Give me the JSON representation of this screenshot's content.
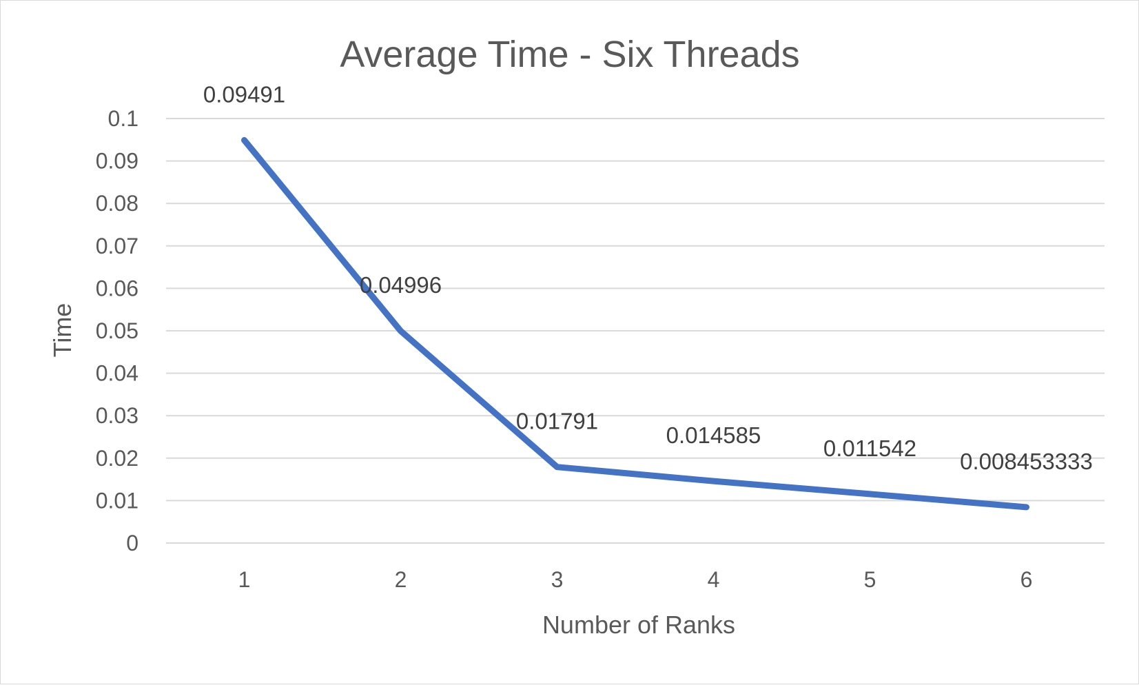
{
  "chart_data": {
    "type": "line",
    "title": "Average Time - Six Threads",
    "xlabel": "Number of Ranks",
    "ylabel": "Time",
    "categories": [
      "1",
      "2",
      "3",
      "4",
      "5",
      "6"
    ],
    "series": [
      {
        "values": [
          0.09491,
          0.04996,
          0.01791,
          0.014585,
          0.011542,
          0.008453333
        ],
        "data_labels": [
          "0.09491",
          "0.04996",
          "0.01791",
          "0.014585",
          "0.011542",
          "0.008453333"
        ],
        "color": "#4472c4"
      }
    ],
    "ylim": [
      0,
      0.1
    ],
    "yticks": [
      "0",
      "0.01",
      "0.02",
      "0.03",
      "0.04",
      "0.05",
      "0.06",
      "0.07",
      "0.08",
      "0.09",
      "0.1"
    ],
    "grid": true,
    "legend": "none"
  }
}
